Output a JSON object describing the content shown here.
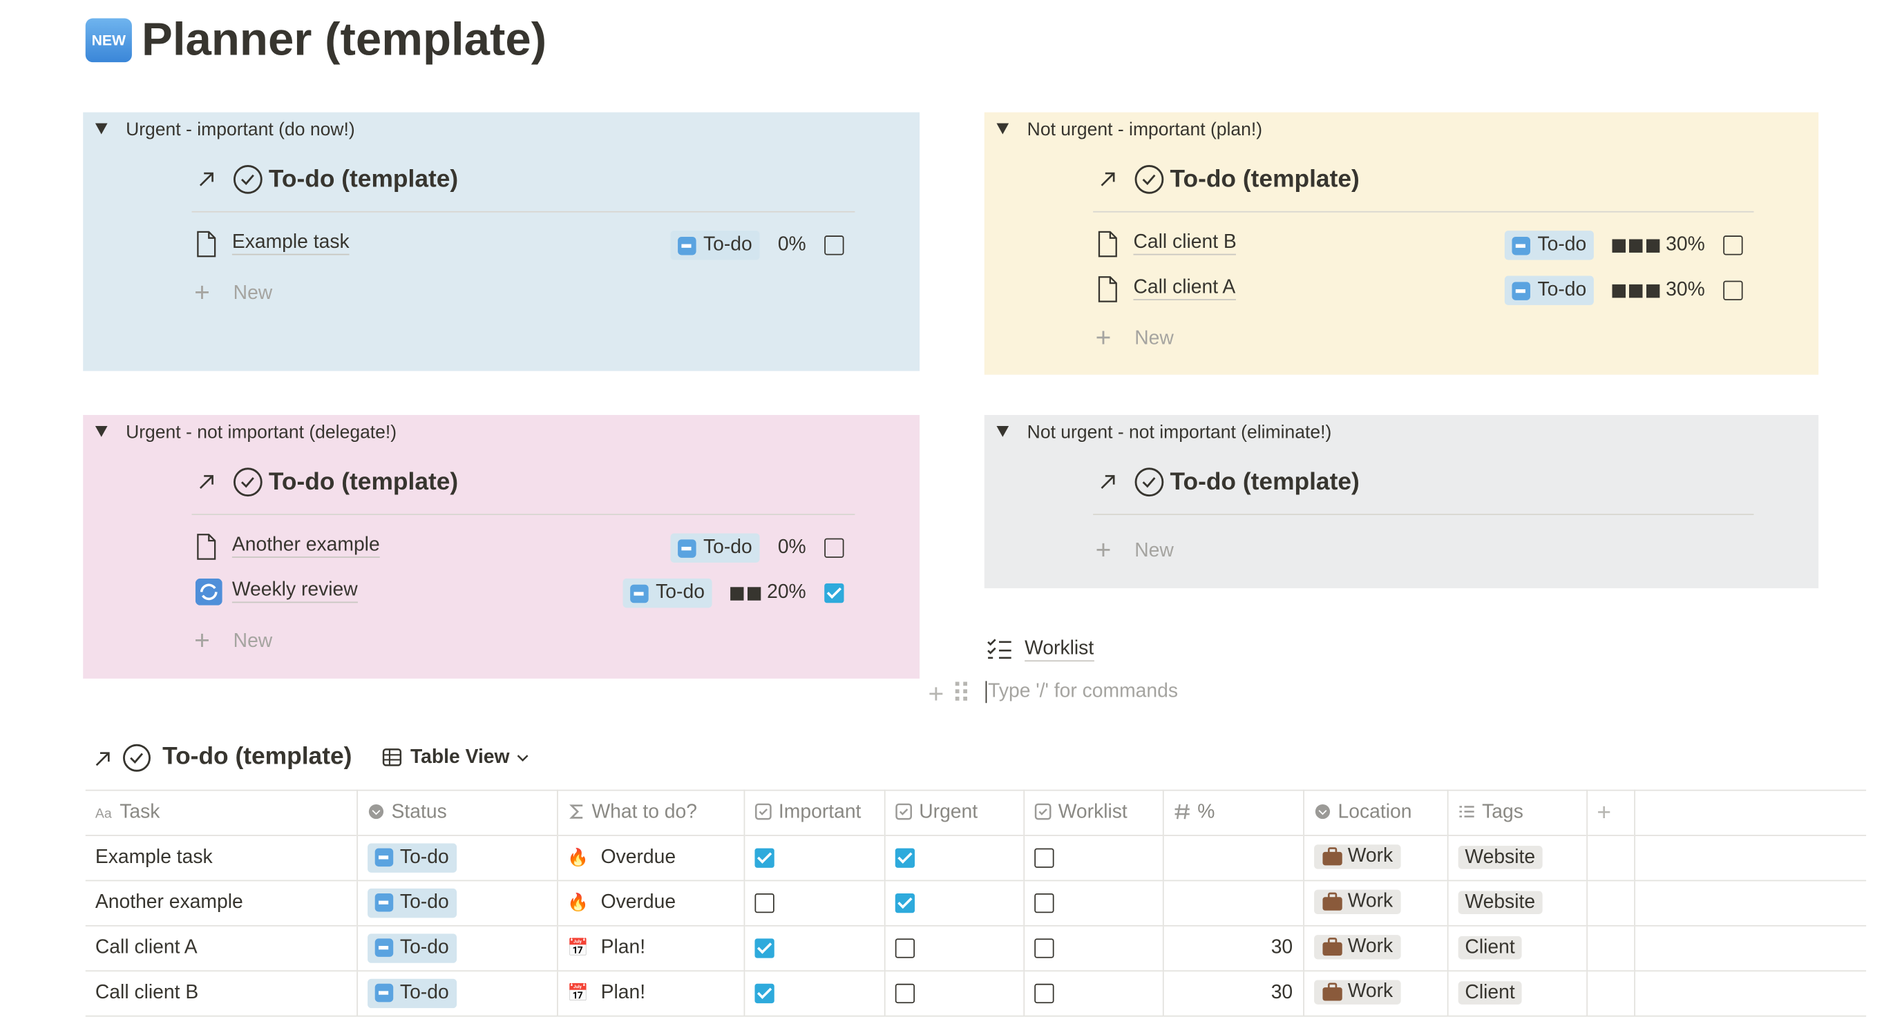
{
  "page": {
    "icon": "NEW",
    "title": "Planner (template)"
  },
  "quadrants": [
    {
      "heading": "Urgent - important (do now!)",
      "view_title": "To-do (template)",
      "new": "New",
      "items": [
        {
          "name": "Example task",
          "status": "To-do",
          "progress": "0%",
          "done": false
        }
      ]
    },
    {
      "heading": "Not urgent - important (plan!)",
      "view_title": "To-do (template)",
      "new": "New",
      "items": [
        {
          "name": "Call client B",
          "status": "To-do",
          "progress": "30%",
          "done": false
        },
        {
          "name": "Call client A",
          "status": "To-do",
          "progress": "30%",
          "done": false
        }
      ]
    },
    {
      "heading": "Urgent - not important (delegate!)",
      "view_title": "To-do (template)",
      "new": "New",
      "items": [
        {
          "name": "Another example",
          "status": "To-do",
          "progress": "0%",
          "done": false
        },
        {
          "name": "Weekly review",
          "status": "To-do",
          "progress": "20%",
          "done": true
        }
      ]
    },
    {
      "heading": "Not urgent - not important (eliminate!)",
      "view_title": "To-do (template)",
      "new": "New",
      "items": []
    }
  ],
  "worklist": {
    "label": "Worklist",
    "placeholder": "Type '/' for commands"
  },
  "table": {
    "title": "To-do (template)",
    "view": "Table View",
    "columns": [
      "Task",
      "Status",
      "What to do?",
      "Important",
      "Urgent",
      "Worklist",
      "%",
      "Location",
      "Tags"
    ],
    "rows": [
      {
        "task": "Example task",
        "status": "To-do",
        "what_icon": "🔥",
        "what": "Overdue",
        "important": true,
        "urgent": true,
        "worklist": false,
        "percent": null,
        "location": "Work",
        "tags": "Website"
      },
      {
        "task": "Another example",
        "status": "To-do",
        "what_icon": "🔥",
        "what": "Overdue",
        "important": false,
        "urgent": true,
        "worklist": false,
        "percent": null,
        "location": "Work",
        "tags": "Website"
      },
      {
        "task": "Call client A",
        "status": "To-do",
        "what_icon": "📅",
        "what": "Plan!",
        "important": true,
        "urgent": false,
        "worklist": false,
        "percent": 30,
        "location": "Work",
        "tags": "Client"
      },
      {
        "task": "Call client B",
        "status": "To-do",
        "what_icon": "📅",
        "what": "Plan!",
        "important": true,
        "urgent": false,
        "worklist": false,
        "percent": 30,
        "location": "Work",
        "tags": "Client"
      }
    ]
  }
}
